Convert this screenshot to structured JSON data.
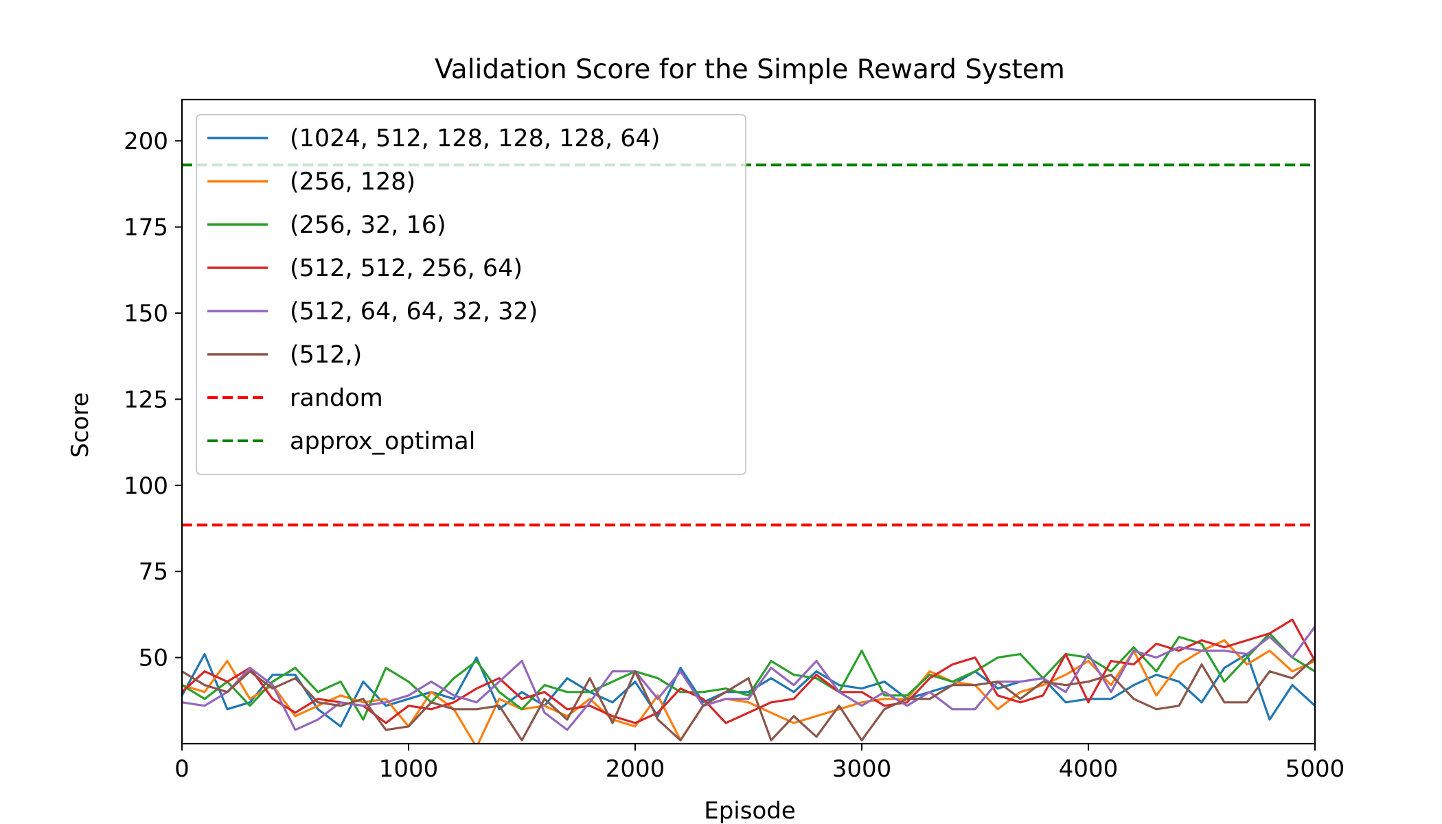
{
  "chart_data": {
    "type": "line",
    "title": "Validation Score for the Simple Reward System",
    "xlabel": "Episode",
    "ylabel": "Score",
    "xlim": [
      0,
      5000
    ],
    "ylim": [
      25,
      212
    ],
    "xticks": [
      0,
      1000,
      2000,
      3000,
      4000,
      5000
    ],
    "xtick_labels": [
      "0",
      "1000",
      "2000",
      "3000",
      "4000",
      "5000"
    ],
    "yticks": [
      50,
      75,
      100,
      125,
      150,
      175,
      200
    ],
    "ytick_labels": [
      "50",
      "75",
      "100",
      "125",
      "150",
      "175",
      "200"
    ],
    "grid": false,
    "legend_position": "top-left",
    "x": [
      0,
      100,
      200,
      300,
      400,
      500,
      600,
      700,
      800,
      900,
      1000,
      1100,
      1200,
      1300,
      1400,
      1500,
      1600,
      1700,
      1800,
      1900,
      2000,
      2100,
      2200,
      2300,
      2400,
      2500,
      2600,
      2700,
      2800,
      2900,
      3000,
      3100,
      3200,
      3300,
      3400,
      3500,
      3600,
      3700,
      3800,
      3900,
      4000,
      4100,
      4200,
      4300,
      4400,
      4500,
      4600,
      4700,
      4800,
      4900,
      5000
    ],
    "series": [
      {
        "name": "(1024, 512, 128, 128, 128, 64)",
        "color": "#1f77b4",
        "dash": "solid",
        "values": [
          39,
          51,
          35,
          37,
          45,
          45,
          35,
          30,
          43,
          36,
          38,
          40,
          38,
          50,
          35,
          40,
          36,
          44,
          40,
          37,
          43,
          33,
          47,
          37,
          40,
          40,
          44,
          40,
          46,
          42,
          41,
          43,
          38,
          40,
          42,
          46,
          41,
          43,
          44,
          37,
          38,
          38,
          42,
          45,
          43,
          37,
          47,
          51,
          32,
          42,
          36
        ]
      },
      {
        "name": "(256, 128)",
        "color": "#ff7f0e",
        "dash": "solid",
        "values": [
          42,
          40,
          49,
          38,
          42,
          33,
          36,
          39,
          37,
          38,
          30,
          40,
          35,
          24,
          38,
          35,
          36,
          33,
          38,
          32,
          30,
          39,
          26,
          36,
          38,
          37,
          34,
          31,
          33,
          35,
          37,
          38,
          38,
          46,
          43,
          42,
          35,
          40,
          42,
          45,
          49,
          42,
          52,
          39,
          48,
          52,
          55,
          48,
          52,
          46,
          49
        ]
      },
      {
        "name": "(256, 32, 16)",
        "color": "#2ca02c",
        "dash": "solid",
        "values": [
          42,
          38,
          43,
          36,
          43,
          47,
          40,
          43,
          32,
          47,
          43,
          37,
          44,
          49,
          40,
          35,
          42,
          40,
          40,
          43,
          46,
          44,
          40,
          40,
          41,
          39,
          49,
          45,
          44,
          40,
          52,
          39,
          39,
          45,
          43,
          46,
          50,
          51,
          44,
          51,
          50,
          46,
          53,
          46,
          56,
          54,
          43,
          50,
          57,
          50,
          46
        ]
      },
      {
        "name": "(512, 512, 256, 64)",
        "color": "#d62728",
        "dash": "solid",
        "values": [
          40,
          46,
          43,
          47,
          38,
          34,
          38,
          37,
          36,
          31,
          36,
          35,
          37,
          41,
          44,
          38,
          40,
          35,
          36,
          33,
          31,
          34,
          41,
          38,
          31,
          34,
          37,
          38,
          45,
          40,
          40,
          36,
          37,
          44,
          48,
          50,
          39,
          37,
          39,
          51,
          37,
          49,
          48,
          54,
          52,
          55,
          53,
          55,
          57,
          61,
          49
        ]
      },
      {
        "name": "(512, 64, 64, 32, 32)",
        "color": "#9467bd",
        "dash": "solid",
        "values": [
          37,
          36,
          40,
          47,
          42,
          29,
          32,
          37,
          36,
          37,
          39,
          43,
          39,
          37,
          43,
          49,
          34,
          29,
          37,
          46,
          46,
          38,
          46,
          36,
          38,
          38,
          47,
          42,
          49,
          40,
          36,
          40,
          36,
          40,
          35,
          35,
          43,
          43,
          44,
          40,
          51,
          40,
          52,
          50,
          53,
          52,
          52,
          51,
          56,
          50,
          59
        ]
      },
      {
        "name": "(512,)",
        "color": "#8c564b",
        "dash": "solid",
        "values": [
          46,
          42,
          40,
          46,
          41,
          44,
          37,
          36,
          38,
          29,
          30,
          37,
          35,
          35,
          36,
          26,
          38,
          32,
          44,
          31,
          46,
          32,
          26,
          36,
          40,
          44,
          26,
          33,
          27,
          36,
          26,
          35,
          38,
          38,
          42,
          42,
          43,
          38,
          43,
          42,
          43,
          45,
          38,
          35,
          36,
          48,
          37,
          37,
          46,
          44,
          50
        ]
      },
      {
        "name": "random",
        "color": "#ff0000",
        "dash": "dashed",
        "constant": 88.5
      },
      {
        "name": "approx_optimal",
        "color": "#008000",
        "dash": "dashed",
        "constant": 193
      }
    ]
  }
}
